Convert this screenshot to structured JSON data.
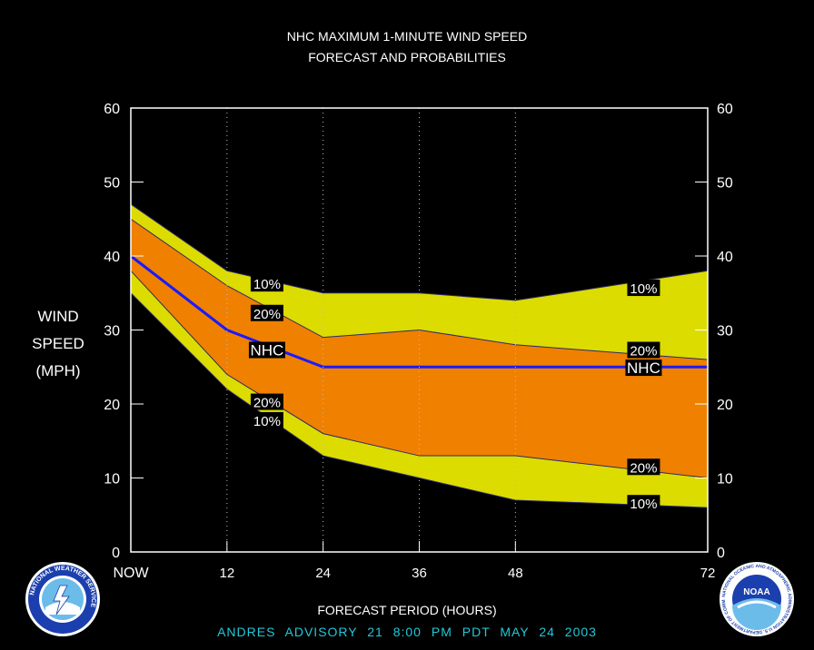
{
  "title": {
    "line1": "NHC MAXIMUM 1-MINUTE WIND SPEED",
    "line2": "FORECAST AND PROBABILITIES"
  },
  "ylabel_lines": [
    "WIND",
    "SPEED",
    "(MPH)"
  ],
  "xlabel": "FORECAST PERIOD (HOURS)",
  "advisory": "ANDRES   ADVISORY  21  8:00  PM  PDT  MAY  24  2003",
  "logos": {
    "left_icon": "nws-logo-icon",
    "right_icon": "noaa-logo-icon",
    "left_text": "NATIONAL WEATHER SERVICE",
    "right_text": "NATIONAL OCEANIC AND ATMOSPHERIC ADMINISTRATION U.S. DEPARTMENT OF COMMERCE",
    "right_center_text": "NOAA"
  },
  "colors": {
    "background": "#000000",
    "band_10": "#dcdc00",
    "band_20": "#f08000",
    "nhc_line": "#1a1aff",
    "axis": "#ffffff",
    "advisory_text": "#22c8d8"
  },
  "chart_data": {
    "type": "area",
    "xlim": [
      0,
      72
    ],
    "ylim": [
      0,
      60
    ],
    "x_ticks": [
      0,
      12,
      24,
      36,
      48,
      72
    ],
    "x_tick_labels": [
      "NOW",
      "12",
      "24",
      "36",
      "48",
      "72"
    ],
    "y_ticks": [
      0,
      10,
      20,
      30,
      40,
      50,
      60
    ],
    "y_tick_labels": [
      "0",
      "10",
      "20",
      "30",
      "40",
      "50",
      "60"
    ],
    "x": [
      0,
      12,
      24,
      36,
      48,
      72
    ],
    "series": [
      {
        "name": "10%",
        "position": "upper",
        "values": [
          47,
          38,
          35,
          35,
          34,
          38
        ]
      },
      {
        "name": "20%",
        "position": "upper",
        "values": [
          45,
          36,
          29,
          30,
          28,
          26
        ]
      },
      {
        "name": "NHC",
        "values": [
          40,
          30,
          25,
          25,
          25,
          25
        ]
      },
      {
        "name": "20%",
        "position": "lower",
        "values": [
          38,
          24,
          16,
          13,
          13,
          10
        ]
      },
      {
        "name": "10%",
        "position": "lower",
        "values": [
          35,
          22,
          13,
          10,
          7,
          6
        ]
      }
    ],
    "annotations": [
      {
        "text": "10%",
        "x": 17,
        "y": 36.3
      },
      {
        "text": "20%",
        "x": 17,
        "y": 32.3
      },
      {
        "text": "NHC",
        "x": 17,
        "y": 27.3
      },
      {
        "text": "20%",
        "x": 17,
        "y": 20.3
      },
      {
        "text": "10%",
        "x": 17,
        "y": 17.8
      },
      {
        "text": "10%",
        "x": 64,
        "y": 35.7
      },
      {
        "text": "20%",
        "x": 64,
        "y": 27.3
      },
      {
        "text": "NHC",
        "x": 64,
        "y": 24.9
      },
      {
        "text": "20%",
        "x": 64,
        "y": 11.5
      },
      {
        "text": "10%",
        "x": 64,
        "y": 6.6
      }
    ],
    "grid": "dotted vertical at 12, 24, 36, 48"
  }
}
